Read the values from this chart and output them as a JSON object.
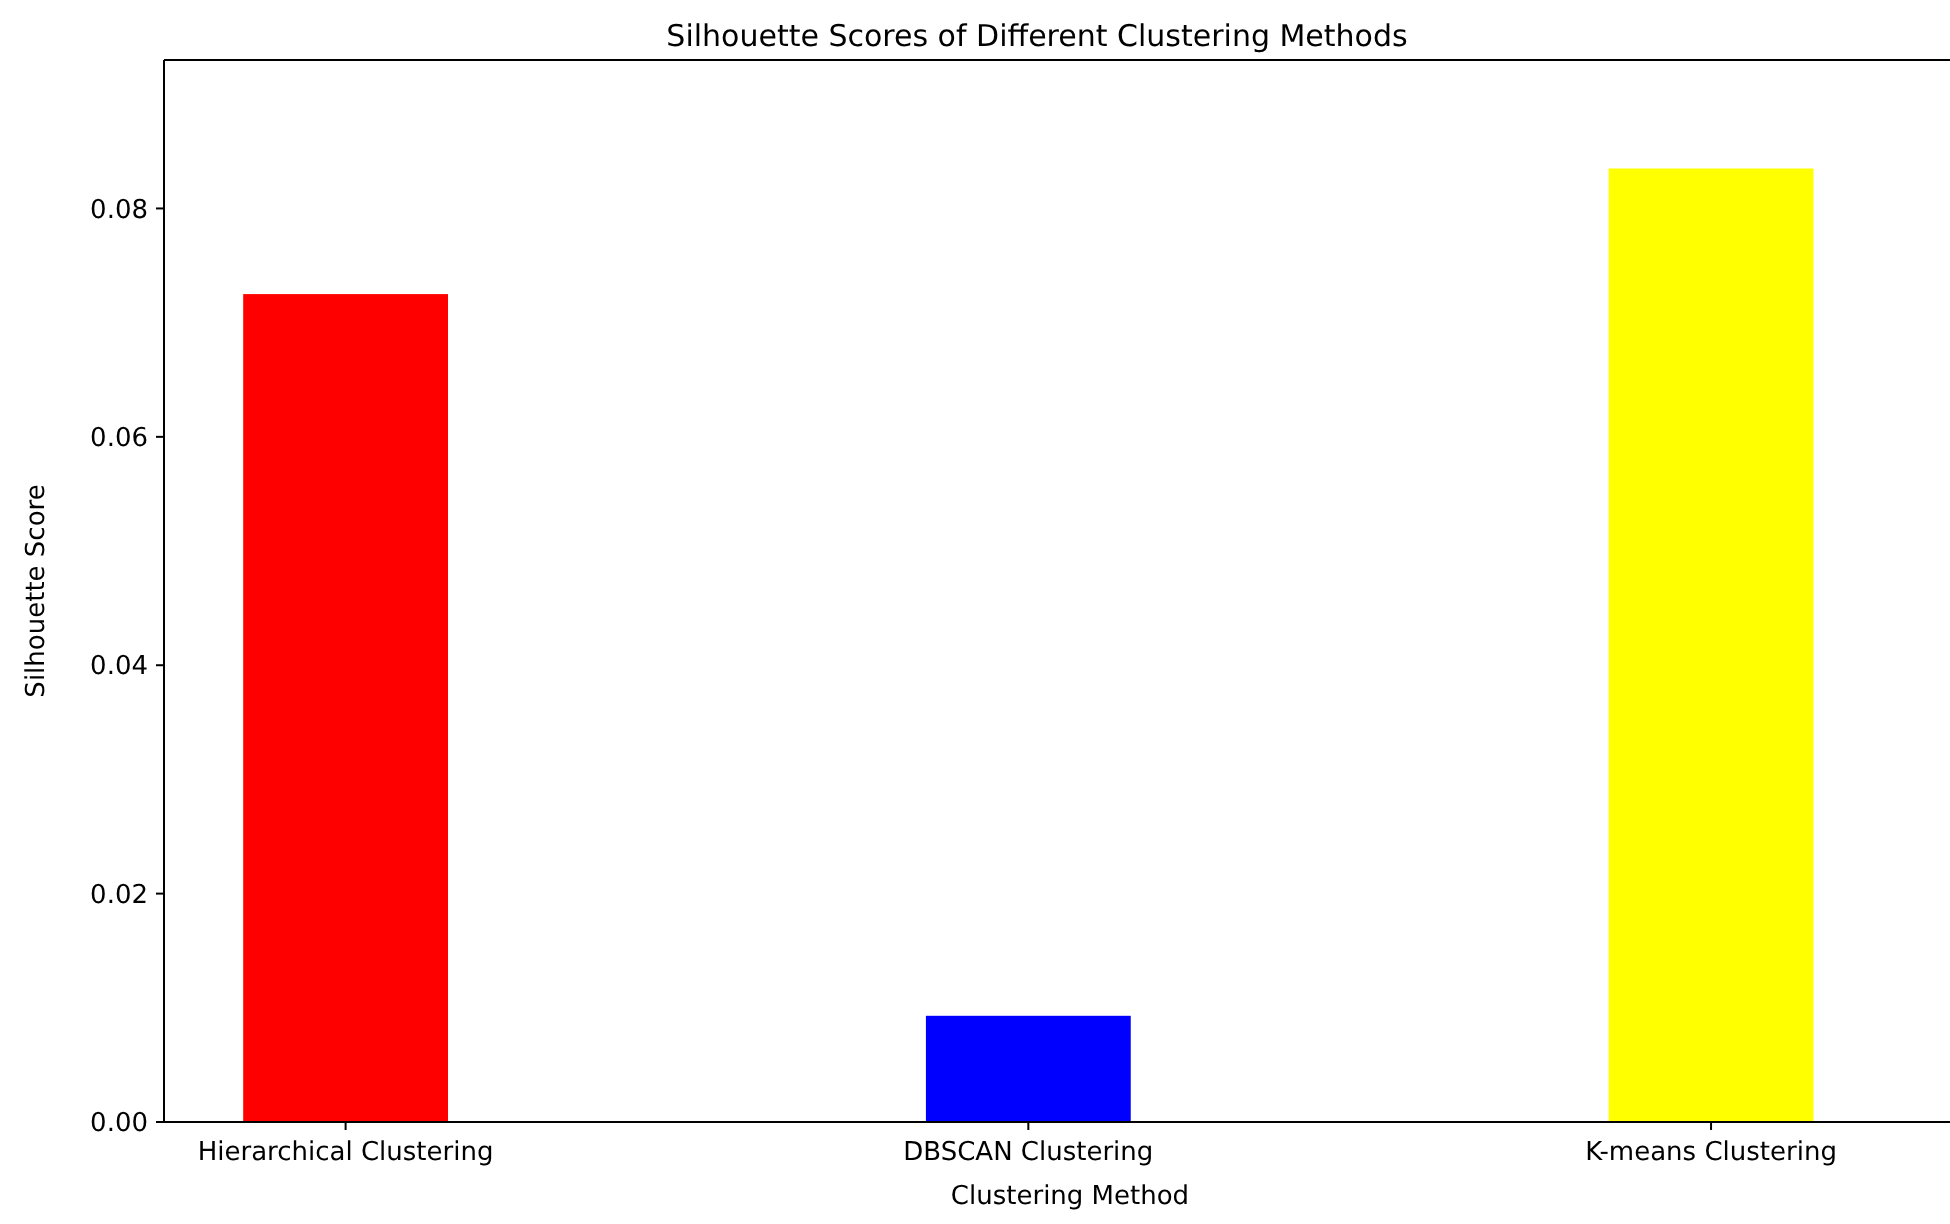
{
  "chart_data": {
    "type": "bar",
    "title": "Silhouette Scores of Different Clustering Methods",
    "xlabel": "Clustering Method",
    "ylabel": "Silhouette Score",
    "categories": [
      "Hierarchical Clustering",
      "DBSCAN Clustering",
      "K-means Clustering"
    ],
    "values": [
      0.0725,
      0.0093,
      0.0835
    ],
    "colors": [
      "#ff0000",
      "#0000ff",
      "#ffff00"
    ],
    "ylim": [
      0,
      0.093
    ],
    "yticks": [
      {
        "value": 0,
        "label": "0.00"
      },
      {
        "value": 0.02,
        "label": "0.02"
      },
      {
        "value": 0.04,
        "label": "0.04"
      },
      {
        "value": 0.06,
        "label": "0.06"
      },
      {
        "value": 0.08,
        "label": "0.08"
      }
    ],
    "grid": false
  }
}
